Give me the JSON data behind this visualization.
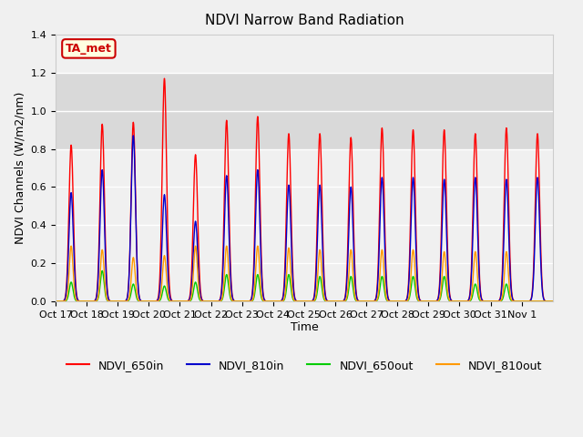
{
  "title": "NDVI Narrow Band Radiation",
  "ylabel": "NDVI Channels (W/m2/nm)",
  "xlabel": "Time",
  "ylim": [
    0,
    1.4
  ],
  "yticks": [
    0.0,
    0.2,
    0.4,
    0.6,
    0.8,
    1.0,
    1.2,
    1.4
  ],
  "xtick_labels": [
    "Oct 17",
    "Oct 18",
    "Oct 19",
    "Oct 20",
    "Oct 21",
    "Oct 22",
    "Oct 23",
    "Oct 24",
    "Oct 25",
    "Oct 26",
    "Oct 27",
    "Oct 28",
    "Oct 29",
    "Oct 30",
    "Oct 31",
    "Nov 1"
  ],
  "background_color": "#f0f0f0",
  "grid_color": "white",
  "annotation_text": "TA_met",
  "annotation_bg": "#ffffe0",
  "annotation_border": "#cc0000",
  "series_colors": {
    "NDVI_650in": "#ff0000",
    "NDVI_810in": "#0000cc",
    "NDVI_650out": "#00cc00",
    "NDVI_810out": "#ff9900"
  },
  "peak_650in": [
    0.82,
    0.93,
    0.94,
    1.17,
    0.77,
    0.95,
    0.97,
    0.88,
    0.88,
    0.86,
    0.91,
    0.9,
    0.9,
    0.88,
    0.91,
    0.88
  ],
  "peak_810in": [
    0.57,
    0.69,
    0.87,
    0.56,
    0.42,
    0.66,
    0.69,
    0.61,
    0.61,
    0.6,
    0.65,
    0.65,
    0.64,
    0.65,
    0.64,
    0.65
  ],
  "peak_650out": [
    0.1,
    0.16,
    0.09,
    0.08,
    0.1,
    0.14,
    0.14,
    0.14,
    0.13,
    0.13,
    0.13,
    0.13,
    0.13,
    0.09,
    0.09,
    0.0
  ],
  "peak_810out": [
    0.29,
    0.27,
    0.23,
    0.24,
    0.29,
    0.29,
    0.29,
    0.28,
    0.27,
    0.27,
    0.27,
    0.27,
    0.26,
    0.26,
    0.26,
    0.0
  ],
  "n_days": 16,
  "points_per_day": 100
}
